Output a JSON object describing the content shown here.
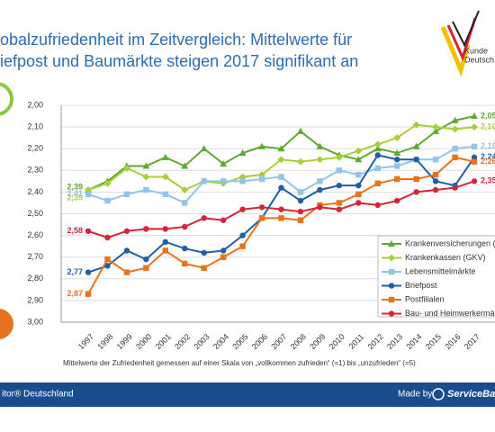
{
  "header": {
    "title_lines": [
      "obalzufriedenheit im Zeitvergleich: Mittelwerte für",
      "iefpost und Baumärkte steigen 2017 signifikant an"
    ]
  },
  "logo": {
    "lines": [
      "Kunde",
      "Deutsch"
    ]
  },
  "footer": {
    "left": "itor® Deutschland",
    "made_by": "Made by",
    "brand": "ServiceBa"
  },
  "chart_data": {
    "type": "line",
    "note": "Mittelwerte der Zufriedenheit gemessen auf einer Skala von „vollkommen zufrieden“ (=1) bis „unzufrieden“ (=5)",
    "x": [
      1997,
      1998,
      1999,
      2000,
      2001,
      2002,
      2003,
      2004,
      2005,
      2006,
      2007,
      2008,
      2009,
      2010,
      2011,
      2012,
      2013,
      2014,
      2015,
      2016,
      2017
    ],
    "ylim": [
      3.0,
      2.0
    ],
    "y_inverted": true,
    "grid": true,
    "legend": "lower right",
    "yticks": [
      {
        "value": 2.0,
        "label": "2,00"
      },
      {
        "value": 2.1,
        "label": "2,10"
      },
      {
        "value": 2.2,
        "label": "2,20"
      },
      {
        "value": 2.3,
        "label": "2,30"
      },
      {
        "value": 2.4,
        "label": "2,40"
      },
      {
        "value": 2.5,
        "label": "2,50"
      },
      {
        "value": 2.6,
        "label": "2,60"
      },
      {
        "value": 2.7,
        "label": "2,70"
      },
      {
        "value": 2.8,
        "label": "2,80"
      },
      {
        "value": 2.9,
        "label": "2,90"
      },
      {
        "value": 3.0,
        "label": "3,00"
      }
    ],
    "series": [
      {
        "name": "Krankenversicherungen (PKV)",
        "color": "#5ea833",
        "marker": "triangle",
        "values": [
          2.39,
          2.35,
          2.28,
          2.28,
          2.24,
          2.28,
          2.2,
          2.27,
          2.22,
          2.19,
          2.2,
          2.12,
          2.19,
          2.23,
          2.25,
          2.2,
          2.22,
          2.19,
          2.12,
          2.07,
          2.05
        ],
        "value_labels": [
          "2,39",
          null,
          null,
          null,
          null,
          null,
          null,
          null,
          null,
          null,
          null,
          null,
          null,
          null,
          null,
          null,
          null,
          null,
          null,
          null,
          "2,05"
        ]
      },
      {
        "name": "Krankenkassen (GKV)",
        "color": "#a9cf38",
        "marker": "diamond",
        "values": [
          2.39,
          2.36,
          2.29,
          2.33,
          2.33,
          2.39,
          2.35,
          2.36,
          2.33,
          2.32,
          2.25,
          2.26,
          2.25,
          2.24,
          2.21,
          2.18,
          2.15,
          2.09,
          2.1,
          2.11,
          2.1
        ],
        "value_labels": [
          "2,39",
          null,
          null,
          null,
          null,
          null,
          null,
          null,
          null,
          null,
          null,
          null,
          null,
          null,
          null,
          null,
          null,
          null,
          null,
          null,
          "2,10"
        ]
      },
      {
        "name": "Lebensmittelmärkte",
        "color": "#8fc5ea",
        "marker": "square",
        "values": [
          2.41,
          2.44,
          2.41,
          2.39,
          2.41,
          2.45,
          2.35,
          2.35,
          2.35,
          2.34,
          2.33,
          2.4,
          2.35,
          2.3,
          2.32,
          2.29,
          2.28,
          2.25,
          2.25,
          2.2,
          2.19
        ],
        "value_labels": [
          "2,41",
          null,
          null,
          null,
          null,
          null,
          null,
          null,
          null,
          null,
          null,
          null,
          null,
          null,
          null,
          null,
          null,
          null,
          null,
          null,
          "2,19"
        ]
      },
      {
        "name": "Briefpost",
        "color": "#1f5ea8",
        "marker": "circle",
        "values": [
          2.77,
          2.74,
          2.67,
          2.71,
          2.63,
          2.66,
          2.68,
          2.67,
          2.6,
          2.52,
          2.38,
          2.44,
          2.39,
          2.37,
          2.37,
          2.23,
          2.25,
          2.25,
          2.35,
          2.37,
          2.24
        ],
        "value_labels": [
          "2,77",
          null,
          null,
          null,
          null,
          null,
          null,
          null,
          null,
          null,
          null,
          null,
          null,
          null,
          null,
          null,
          null,
          null,
          null,
          null,
          "2,24"
        ]
      },
      {
        "name": "Postfilialen",
        "color": "#e8731e",
        "marker": "square",
        "values": [
          2.87,
          2.71,
          2.77,
          2.75,
          2.67,
          2.73,
          2.75,
          2.7,
          2.65,
          2.52,
          2.52,
          2.53,
          2.46,
          2.45,
          2.41,
          2.36,
          2.34,
          2.34,
          2.32,
          2.24,
          2.26
        ],
        "value_labels": [
          "2,87",
          null,
          null,
          null,
          null,
          null,
          null,
          null,
          null,
          null,
          null,
          null,
          null,
          null,
          null,
          null,
          null,
          null,
          null,
          null,
          "2,26"
        ]
      },
      {
        "name": "Bau- und Heimwerkermärkte",
        "color": "#d6253a",
        "marker": "circle",
        "values": [
          2.58,
          2.61,
          2.58,
          2.57,
          2.57,
          2.56,
          2.52,
          2.53,
          2.48,
          2.47,
          2.48,
          2.49,
          2.47,
          2.48,
          2.45,
          2.46,
          2.44,
          2.4,
          2.39,
          2.38,
          2.35
        ],
        "value_labels": [
          "2,58",
          null,
          null,
          null,
          null,
          null,
          null,
          null,
          null,
          null,
          null,
          null,
          null,
          null,
          null,
          null,
          null,
          null,
          null,
          null,
          "2,35"
        ]
      }
    ]
  }
}
